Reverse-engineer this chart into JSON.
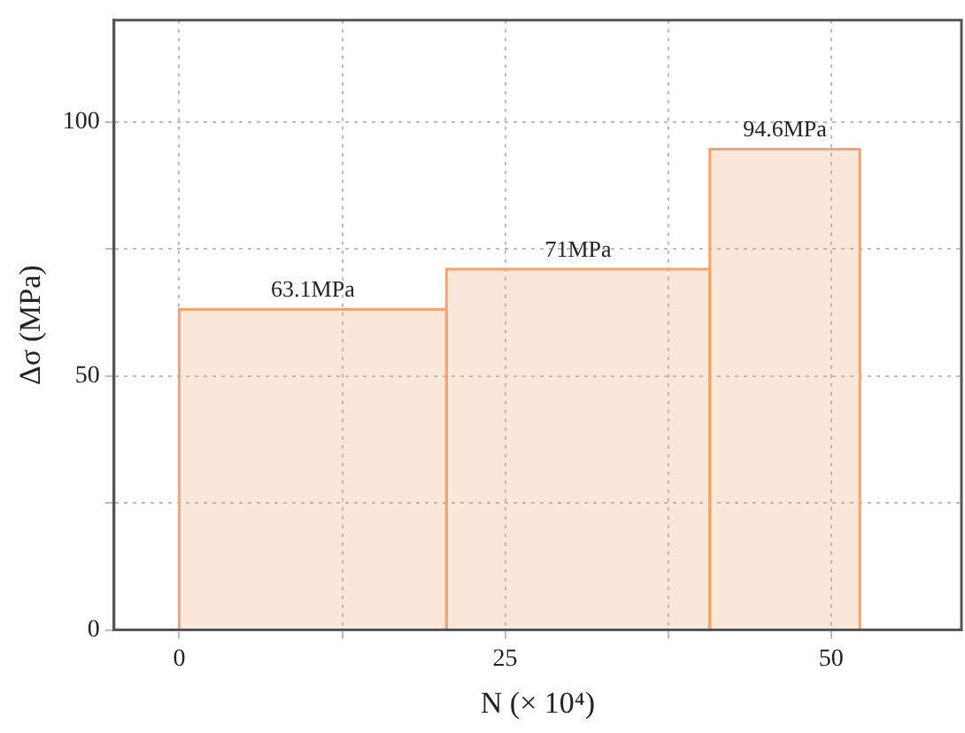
{
  "chart_data": {
    "type": "histogram",
    "xlabel": "N (× 10⁴)",
    "ylabel": "Δσ (MPa)",
    "bins": [
      0,
      20.5,
      40.7,
      52.2
    ],
    "values": [
      63.1,
      71,
      94.6
    ],
    "value_labels": [
      "63.1MPa",
      "71MPa",
      "94.6MPa"
    ],
    "color": "#f4a36c",
    "xlim": [
      -5,
      60
    ],
    "xticks": [
      0,
      {
        "value": 12.5,
        "label": null
      },
      25,
      {
        "value": 37.5,
        "label": null
      },
      50
    ],
    "ylim": [
      0,
      120
    ],
    "yticks": [
      0,
      {
        "value": 25,
        "label": null
      },
      50,
      {
        "value": 75,
        "label": null
      },
      100
    ],
    "grid": true
  }
}
